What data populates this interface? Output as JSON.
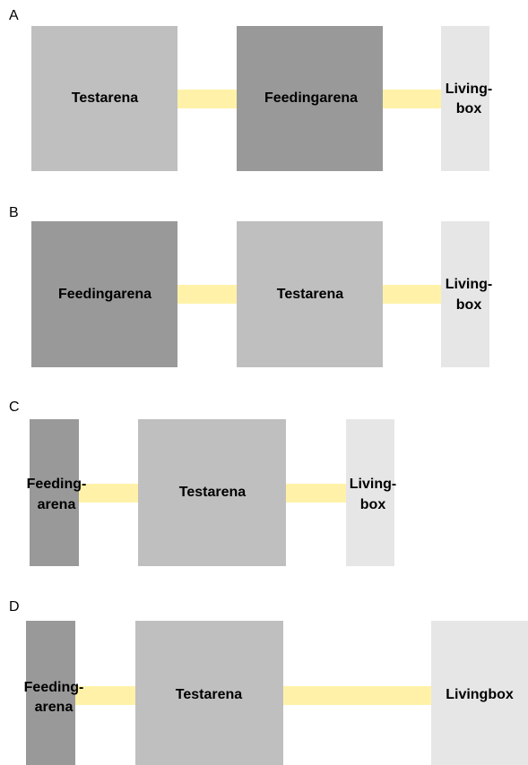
{
  "panels": [
    {
      "letter": "A",
      "nodes": [
        {
          "label": [
            "Testarena"
          ]
        },
        {
          "label": [
            "Feedingarena"
          ]
        },
        {
          "label": [
            "Living-",
            "box"
          ]
        }
      ]
    },
    {
      "letter": "B",
      "nodes": [
        {
          "label": [
            "Feedingarena"
          ]
        },
        {
          "label": [
            "Testarena"
          ]
        },
        {
          "label": [
            "Living-",
            "box"
          ]
        }
      ]
    },
    {
      "letter": "C",
      "nodes": [
        {
          "label": [
            "Feeding-",
            "arena"
          ]
        },
        {
          "label": [
            "Testarena"
          ]
        },
        {
          "label": [
            "Living-",
            "box"
          ]
        }
      ]
    },
    {
      "letter": "D",
      "nodes": [
        {
          "label": [
            "Feeding-",
            "arena"
          ]
        },
        {
          "label": [
            "Testarena"
          ]
        },
        {
          "label": [
            "Livingbox"
          ]
        }
      ]
    }
  ]
}
